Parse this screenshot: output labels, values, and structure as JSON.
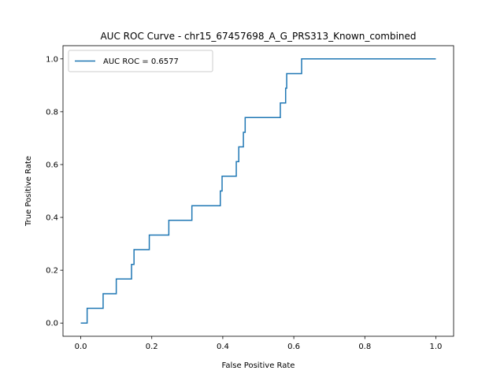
{
  "chart_data": {
    "type": "line",
    "title": "AUC ROC Curve - chr15_67457698_A_G_PRS313_Known_combined",
    "xlabel": "False Positive Rate",
    "ylabel": "True Positive Rate",
    "xlim": [
      -0.05,
      1.05
    ],
    "ylim": [
      -0.05,
      1.05
    ],
    "xticks": [
      "0.0",
      "0.2",
      "0.4",
      "0.6",
      "0.8",
      "1.0"
    ],
    "yticks": [
      "0.0",
      "0.2",
      "0.4",
      "0.6",
      "0.8",
      "1.0"
    ],
    "grid": false,
    "legend_position": "upper-left",
    "series": [
      {
        "name": "AUC ROC = 0.6577",
        "color": "#1f77b4",
        "x": [
          0.0,
          0.018,
          0.018,
          0.063,
          0.063,
          0.1,
          0.1,
          0.143,
          0.143,
          0.15,
          0.15,
          0.193,
          0.193,
          0.248,
          0.248,
          0.313,
          0.313,
          0.393,
          0.393,
          0.398,
          0.398,
          0.438,
          0.438,
          0.445,
          0.445,
          0.458,
          0.458,
          0.463,
          0.463,
          0.562,
          0.562,
          0.577,
          0.577,
          0.58,
          0.58,
          0.622,
          0.622,
          1.0
        ],
        "y": [
          0.0,
          0.0,
          0.056,
          0.056,
          0.111,
          0.111,
          0.167,
          0.167,
          0.222,
          0.222,
          0.278,
          0.278,
          0.333,
          0.333,
          0.389,
          0.389,
          0.444,
          0.444,
          0.5,
          0.5,
          0.556,
          0.556,
          0.611,
          0.611,
          0.667,
          0.667,
          0.722,
          0.722,
          0.778,
          0.778,
          0.833,
          0.833,
          0.889,
          0.889,
          0.944,
          0.944,
          1.0,
          1.0
        ]
      }
    ]
  }
}
